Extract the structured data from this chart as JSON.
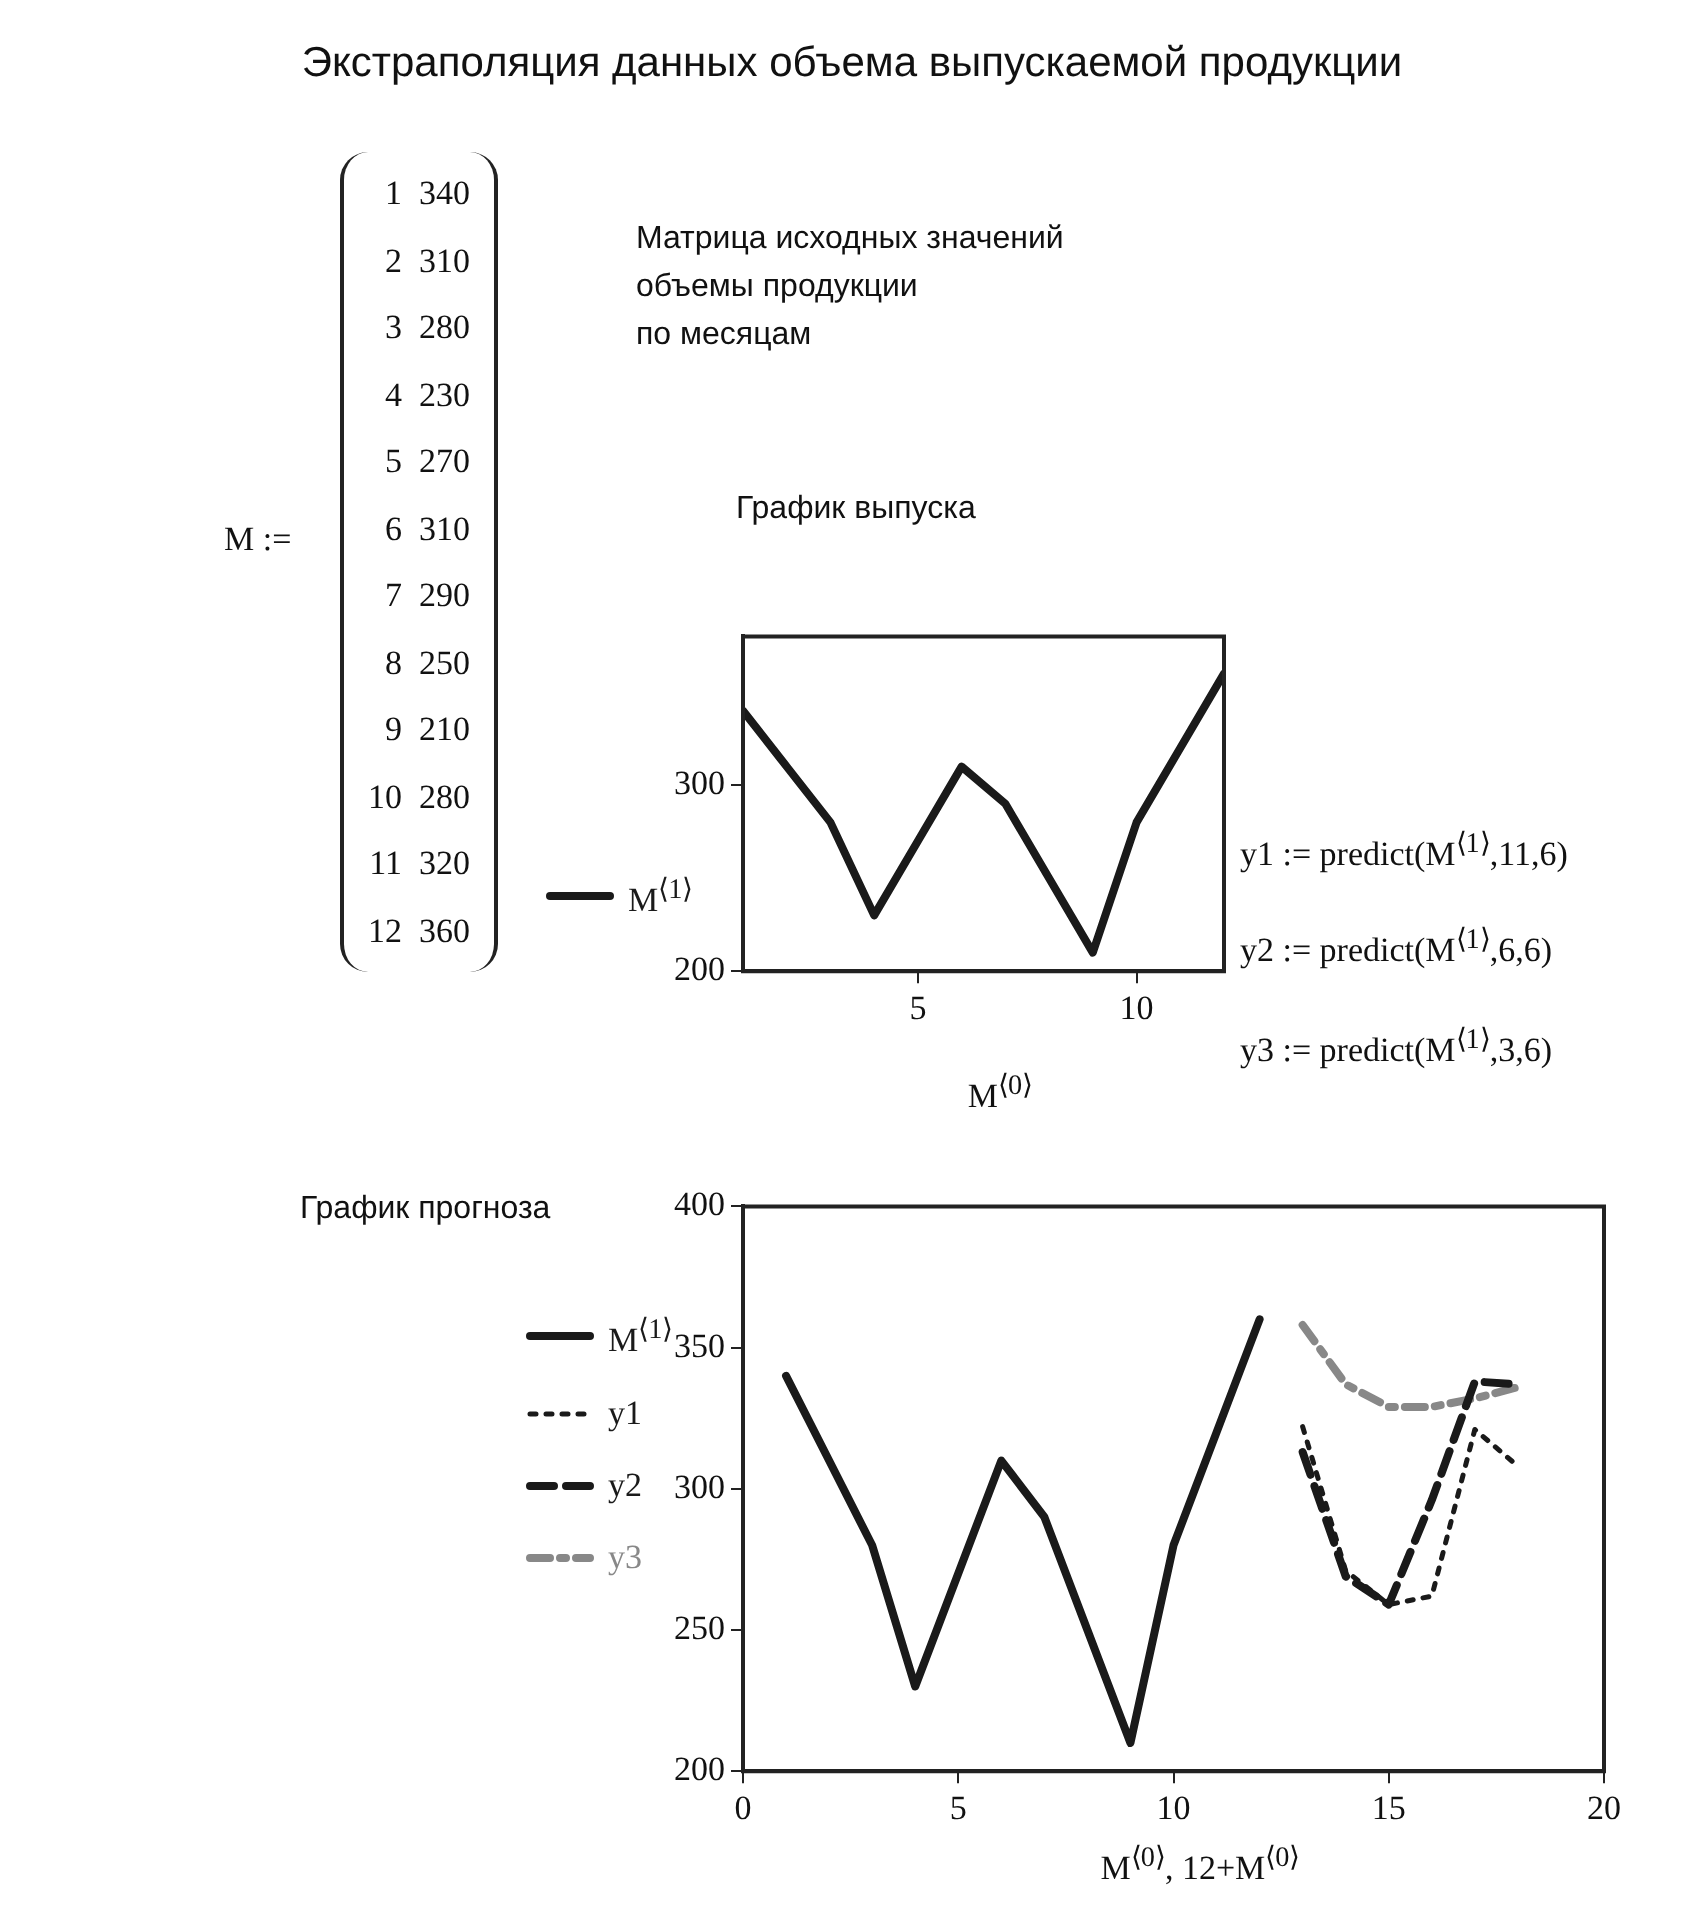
{
  "chart_data": [
    {
      "type": "other",
      "title": "Экстраполяция данных объема выпускаемой продукции",
      "annotations": [
        "M :=",
        "1 340",
        "2 310",
        "3 280",
        "4 230",
        "5 270",
        "6 310",
        "7 290",
        "8 250",
        "9 210",
        "10 280",
        "11 320",
        "12 360"
      ]
    },
    {
      "type": "line",
      "title": "График выпуска",
      "xlabel": "M$^{⟨0⟩}$",
      "annotations": [
        "Матрица исходных значений\nобъемы продукции\nпо месяцам",
        "y1 := predict(M$^{⟨1⟩}$,11,6)",
        "y2 := predict(M$^{⟨1⟩}$,6,6)",
        "y3 := predict(M$^{⟨1⟩}$,3,6)"
      ],
      "xlim": [
        1,
        12
      ],
      "xticks": [
        5,
        10
      ],
      "ylim": [
        200,
        380
      ],
      "yticks": [
        200,
        300
      ],
      "grid": false,
      "legend": "left",
      "marker": "none",
      "series": [
        {
          "name": "M$^{⟨1⟩}$",
          "color": "#1a1a1a",
          "line_style": "solid",
          "x": [
            1,
            2,
            3,
            4,
            5,
            6,
            7,
            8,
            9,
            10,
            11,
            12
          ],
          "values": [
            340,
            310,
            280,
            230,
            270,
            310,
            290,
            250,
            210,
            280,
            320,
            360
          ]
        }
      ]
    },
    {
      "type": "line",
      "title": "График прогноза",
      "xlabel": "M$^{⟨0⟩}$, 12+M$^{⟨0⟩}$",
      "xlim": [
        0,
        20
      ],
      "xticks": [
        0,
        5,
        10,
        15,
        20
      ],
      "ylim": [
        200,
        400
      ],
      "yticks": [
        200,
        250,
        300,
        350,
        400
      ],
      "grid": false,
      "legend": "left",
      "marker": "none",
      "series": [
        {
          "name": "M$^{⟨1⟩}$",
          "color": "#1a1a1a",
          "line_style": "solid",
          "x": [
            1,
            2,
            3,
            4,
            5,
            6,
            7,
            8,
            9,
            10,
            11,
            12
          ],
          "values": [
            340,
            310,
            280,
            230,
            270,
            310,
            290,
            250,
            210,
            280,
            320,
            360
          ]
        },
        {
          "name": "y1",
          "color": "#1a1a1a",
          "line_style": "dotted",
          "x": [
            13,
            14,
            15,
            16,
            17,
            18
          ],
          "values": [
            322,
            271,
            259,
            262,
            321,
            308
          ]
        },
        {
          "name": "y2",
          "color": "#1a1a1a",
          "line_style": "dashed",
          "x": [
            13,
            14,
            15,
            16,
            17,
            18
          ],
          "values": [
            313,
            269,
            259,
            296,
            338,
            337
          ]
        },
        {
          "name": "y3",
          "color": "#888888",
          "line_style": "dashdot",
          "x": [
            13,
            14,
            15,
            16,
            17,
            18
          ],
          "values": [
            358,
            337,
            329,
            329,
            332,
            336
          ]
        }
      ]
    }
  ]
}
